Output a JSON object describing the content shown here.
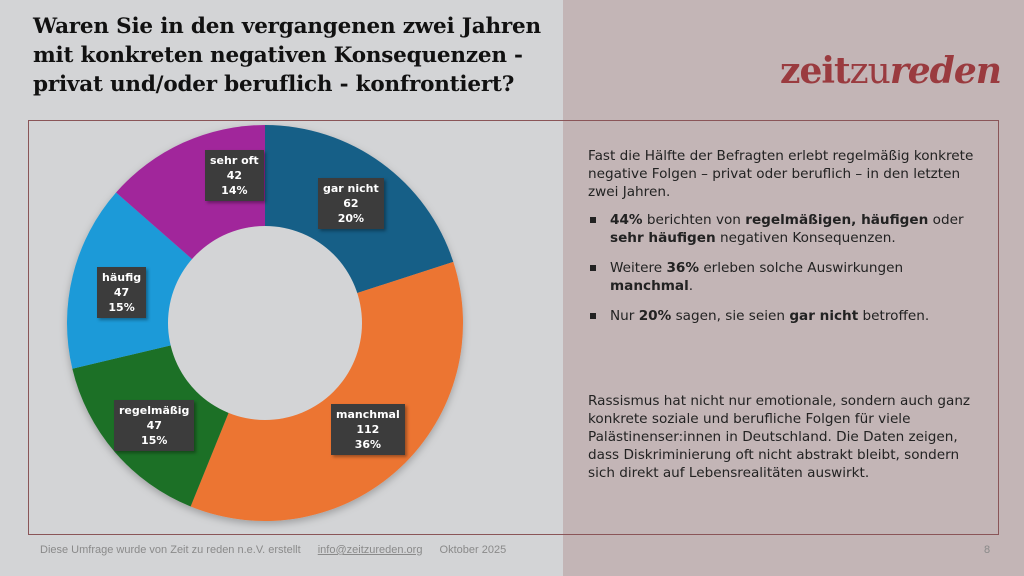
{
  "title": "Waren Sie in den vergangenen zwei Jahren mit konkreten negativen Konsequenzen - privat und/oder beruflich - konfrontiert?",
  "logo": {
    "part1": "zeit",
    "part2": "zu",
    "part3": "reden"
  },
  "chart_data": {
    "type": "pie",
    "variant": "donut",
    "title": "Waren Sie in den vergangenen zwei Jahren mit konkreten negativen Konsequenzen - privat und/oder beruflich - konfrontiert?",
    "start": "top",
    "direction": "clockwise",
    "slices": [
      {
        "label": "gar nicht",
        "count": 62,
        "percent": 20,
        "color": "#165f87"
      },
      {
        "label": "manchmal",
        "count": 112,
        "percent": 36,
        "color": "#ec7431"
      },
      {
        "label": "regelmäßig",
        "count": 47,
        "percent": 15,
        "color": "#1b6f26"
      },
      {
        "label": "häufig",
        "count": 47,
        "percent": 15,
        "color": "#1a9ad8"
      },
      {
        "label": "sehr oft",
        "count": 42,
        "percent": 14,
        "color": "#a1289b"
      }
    ]
  },
  "labels": [
    {
      "name": "gar nicht",
      "count": "62",
      "pct": "20%"
    },
    {
      "name": "manchmal",
      "count": "112",
      "pct": "36%"
    },
    {
      "name": "regelmäßig",
      "count": "47",
      "pct": "15%"
    },
    {
      "name": "häufig",
      "count": "47",
      "pct": "15%"
    },
    {
      "name": "sehr oft",
      "count": "42",
      "pct": "14%"
    }
  ],
  "summary": {
    "intro": "Fast die Hälfte der Befragten erlebt regelmäßig konkrete negative Folgen – privat oder beruflich – in den letzten zwei Jahren.",
    "bullets": [
      {
        "b1": "44%",
        "t1": " berichten von ",
        "b2": "regelmäßigen, häufigen",
        "t2": " oder ",
        "b3": "sehr häufigen",
        "t3": " negativen Konsequenzen."
      },
      {
        "t0": "Weitere ",
        "b1": "36%",
        "t1": " erleben solche Auswirkungen ",
        "b2": "manchmal",
        "t2": "."
      },
      {
        "t0": "Nur ",
        "b1": "20%",
        "t1": " sagen, sie seien ",
        "b2": "gar nicht",
        "t2": " betroffen."
      }
    ],
    "closing": "Rassismus hat nicht nur emotionale, sondern auch ganz konkrete soziale und berufliche Folgen für viele Palästinenser:innen in Deutschland. Die Daten zeigen, dass Diskriminierung oft nicht abstrakt bleibt, sondern sich direkt auf Lebensrealitäten auswirkt."
  },
  "footer": {
    "credit": "Diese Umfrage wurde von Zeit zu reden n.e.V. erstellt",
    "email": "info@zeitzureden.org",
    "date": "Oktober 2025",
    "page": "8"
  }
}
